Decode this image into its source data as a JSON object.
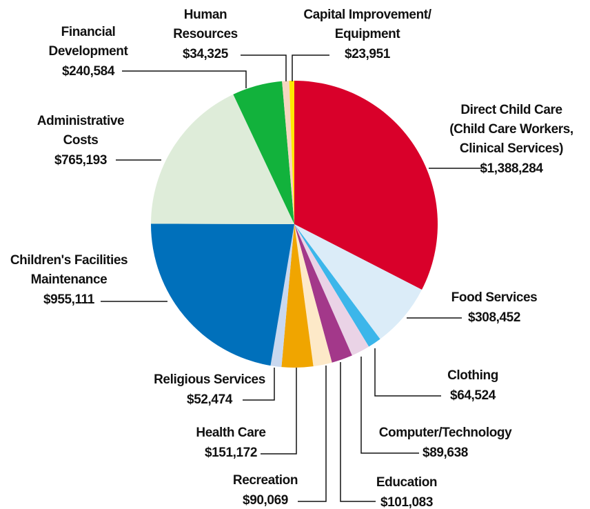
{
  "chart_data": {
    "type": "pie",
    "categories": [
      [
        "Direct Child Care",
        "(Child Care Workers,",
        "Clinical Services)"
      ],
      [
        "Food Services"
      ],
      [
        "Clothing"
      ],
      [
        "Computer/Technology"
      ],
      [
        "Education"
      ],
      [
        "Recreation"
      ],
      [
        "Health Care"
      ],
      [
        "Religious Services"
      ],
      [
        "Children's Facilities",
        "Maintenance"
      ],
      [
        "Administrative",
        "Costs"
      ],
      [
        "Financial",
        "Development"
      ],
      [
        "Human",
        "Resources"
      ],
      [
        "Capital Improvement/",
        "Equipment"
      ]
    ],
    "values": [
      1388284,
      308452,
      64524,
      89638,
      101083,
      90069,
      151172,
      52474,
      955111,
      765193,
      240584,
      34325,
      23951
    ],
    "value_labels": [
      "$1,388,284",
      "$308,452",
      "$64,524",
      "$89,638",
      "$101,083",
      "$90,069",
      "$151,172",
      "$52,474",
      "$955,111",
      "$765,193",
      "$240,584",
      "$34,325",
      "$23,951"
    ],
    "colors": [
      "#d9002a",
      "#dbecf8",
      "#3cb6ea",
      "#ead3e6",
      "#a3388a",
      "#fde9c8",
      "#f0a500",
      "#c9d8ef",
      "#0070bb",
      "#deecd9",
      "#12b23c",
      "#f5d6c0",
      "#ffe800"
    ]
  }
}
